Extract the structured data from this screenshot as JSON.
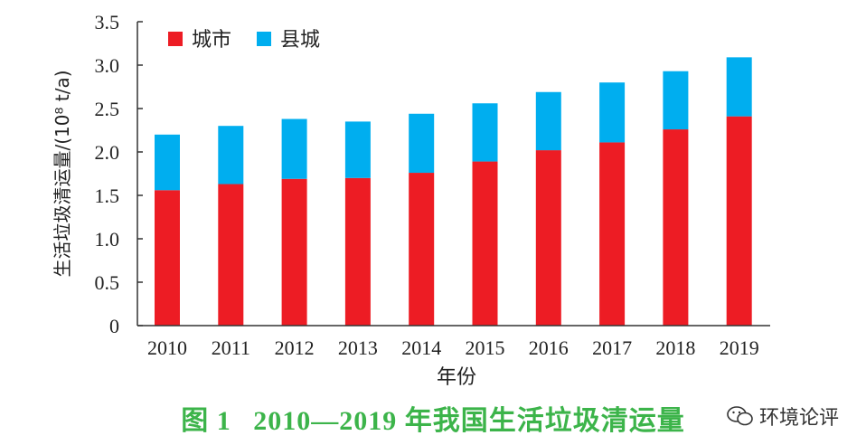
{
  "chart_data": {
    "type": "bar",
    "stacked": true,
    "categories": [
      "2010",
      "2011",
      "2012",
      "2013",
      "2014",
      "2015",
      "2016",
      "2017",
      "2018",
      "2019"
    ],
    "series": [
      {
        "name": "城市",
        "color": "#ed1c24",
        "values": [
          1.56,
          1.63,
          1.69,
          1.7,
          1.76,
          1.89,
          2.02,
          2.11,
          2.26,
          2.41
        ]
      },
      {
        "name": "县城",
        "color": "#00aeef",
        "values": [
          0.64,
          0.67,
          0.69,
          0.65,
          0.68,
          0.67,
          0.67,
          0.69,
          0.67,
          0.68
        ]
      }
    ],
    "xlabel": "年份",
    "ylabel": "生活垃圾清运量/(10⁸ t/a)",
    "ylim": [
      0,
      3.5
    ],
    "yticks": [
      "0",
      "0.5",
      "1.0",
      "1.5",
      "2.0",
      "2.5",
      "3.0",
      "3.5"
    ],
    "grid": false,
    "legend_position": "top-left"
  },
  "caption": {
    "label": "图 1",
    "text": "2010—2019 年我国生活垃圾清运量"
  },
  "watermark": {
    "text": "环境论评",
    "icon": "wechat-icon"
  }
}
